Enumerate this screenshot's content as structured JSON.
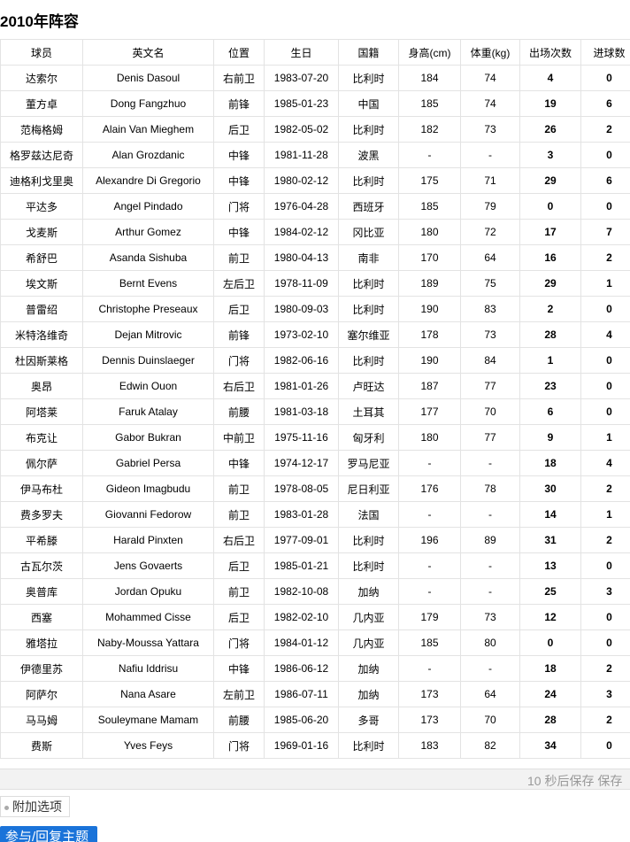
{
  "header": {
    "title": "2010年阵容"
  },
  "table": {
    "columns": [
      "球员",
      "英文名",
      "位置",
      "生日",
      "国籍",
      "身高(cm)",
      "体重(kg)",
      "出场次数",
      "进球数"
    ],
    "rows": [
      [
        "达索尔",
        "Denis Dasoul",
        "右前卫",
        "1983-07-20",
        "比利时",
        "184",
        "74",
        "4",
        "0"
      ],
      [
        "董方卓",
        "Dong Fangzhuo",
        "前锋",
        "1985-01-23",
        "中国",
        "185",
        "74",
        "19",
        "6"
      ],
      [
        "范梅格姆",
        "Alain Van Mieghem",
        "后卫",
        "1982-05-02",
        "比利时",
        "182",
        "73",
        "26",
        "2"
      ],
      [
        "格罗兹达尼奇",
        "Alan Grozdanic",
        "中锋",
        "1981-11-28",
        "波黑",
        "-",
        "-",
        "3",
        "0"
      ],
      [
        "迪格利戈里奥",
        "Alexandre Di Gregorio",
        "中锋",
        "1980-02-12",
        "比利时",
        "175",
        "71",
        "29",
        "6"
      ],
      [
        "平达多",
        "Angel Pindado",
        "门将",
        "1976-04-28",
        "西班牙",
        "185",
        "79",
        "0",
        "0"
      ],
      [
        "戈麦斯",
        "Arthur Gomez",
        "中锋",
        "1984-02-12",
        "冈比亚",
        "180",
        "72",
        "17",
        "7"
      ],
      [
        "希舒巴",
        "Asanda Sishuba",
        "前卫",
        "1980-04-13",
        "南非",
        "170",
        "64",
        "16",
        "2"
      ],
      [
        "埃文斯",
        "Bernt Evens",
        "左后卫",
        "1978-11-09",
        "比利时",
        "189",
        "75",
        "29",
        "1"
      ],
      [
        "普雷绍",
        "Christophe Preseaux",
        "后卫",
        "1980-09-03",
        "比利时",
        "190",
        "83",
        "2",
        "0"
      ],
      [
        "米特洛维奇",
        "Dejan Mitrovic",
        "前锋",
        "1973-02-10",
        "塞尔维亚",
        "178",
        "73",
        "28",
        "4"
      ],
      [
        "杜因斯莱格",
        "Dennis Duinslaeger",
        "门将",
        "1982-06-16",
        "比利时",
        "190",
        "84",
        "1",
        "0"
      ],
      [
        "奥昂",
        "Edwin Ouon",
        "右后卫",
        "1981-01-26",
        "卢旺达",
        "187",
        "77",
        "23",
        "0"
      ],
      [
        "阿塔莱",
        "Faruk Atalay",
        "前腰",
        "1981-03-18",
        "土耳其",
        "177",
        "70",
        "6",
        "0"
      ],
      [
        "布克让",
        "Gabor Bukran",
        "中前卫",
        "1975-11-16",
        "匈牙利",
        "180",
        "77",
        "9",
        "1"
      ],
      [
        "佩尔萨",
        "Gabriel Persa",
        "中锋",
        "1974-12-17",
        "罗马尼亚",
        "-",
        "-",
        "18",
        "4"
      ],
      [
        "伊马布杜",
        "Gideon Imagbudu",
        "前卫",
        "1978-08-05",
        "尼日利亚",
        "176",
        "78",
        "30",
        "2"
      ],
      [
        "费多罗夫",
        "Giovanni Fedorow",
        "前卫",
        "1983-01-28",
        "法国",
        "-",
        "-",
        "14",
        "1"
      ],
      [
        "平希滕",
        "Harald Pinxten",
        "右后卫",
        "1977-09-01",
        "比利时",
        "196",
        "89",
        "31",
        "2"
      ],
      [
        "古瓦尔茨",
        "Jens Govaerts",
        "后卫",
        "1985-01-21",
        "比利时",
        "-",
        "-",
        "13",
        "0"
      ],
      [
        "奥普库",
        "Jordan Opuku",
        "前卫",
        "1982-10-08",
        "加纳",
        "-",
        "-",
        "25",
        "3"
      ],
      [
        "西塞",
        "Mohammed Cisse",
        "后卫",
        "1982-02-10",
        "几内亚",
        "179",
        "73",
        "12",
        "0"
      ],
      [
        "雅塔拉",
        "Naby-Moussa Yattara",
        "门将",
        "1984-01-12",
        "几内亚",
        "185",
        "80",
        "0",
        "0"
      ],
      [
        "伊德里苏",
        "Nafiu Iddrisu",
        "中锋",
        "1986-06-12",
        "加纳",
        "-",
        "-",
        "18",
        "2"
      ],
      [
        "阿萨尔",
        "Nana Asare",
        "左前卫",
        "1986-07-11",
        "加纳",
        "173",
        "64",
        "24",
        "3"
      ],
      [
        "马马姆",
        "Souleymane Mamam",
        "前腰",
        "1985-06-20",
        "多哥",
        "173",
        "70",
        "28",
        "2"
      ],
      [
        "费斯",
        "Yves Feys",
        "门将",
        "1969-01-16",
        "比利时",
        "183",
        "82",
        "34",
        "0"
      ]
    ]
  },
  "footer": {
    "autosave": "10 秒后保存 保存",
    "extra_options": "附加选项",
    "reply": "参与/回复主题"
  }
}
